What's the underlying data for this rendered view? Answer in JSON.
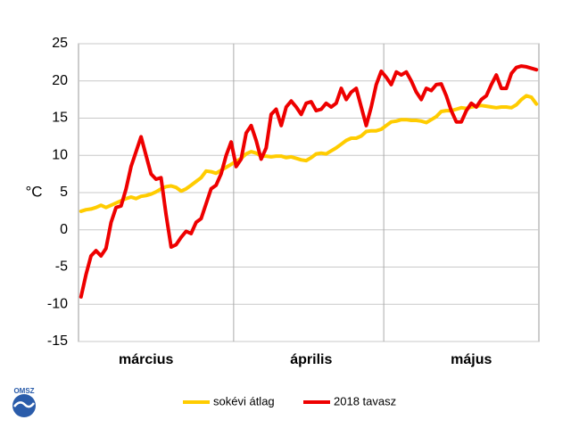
{
  "chart_data": {
    "type": "line",
    "y_label": "°C",
    "logo_text": "OMSZ",
    "categories": [
      null,
      null,
      null,
      null,
      null,
      null,
      null,
      null,
      null,
      null,
      null,
      null,
      null,
      "március",
      null,
      null,
      null,
      null,
      null,
      null,
      null,
      null,
      null,
      null,
      null,
      null,
      null,
      null,
      null,
      null,
      null,
      null,
      null,
      null,
      null,
      null,
      null,
      null,
      null,
      null,
      null,
      null,
      null,
      null,
      null,
      null,
      "április",
      null,
      null,
      null,
      null,
      null,
      null,
      null,
      null,
      null,
      null,
      null,
      null,
      null,
      null,
      null,
      null,
      null,
      null,
      null,
      null,
      null,
      null,
      null,
      null,
      null,
      null,
      null,
      null,
      null,
      null,
      null,
      "május",
      null,
      null,
      null,
      null,
      null,
      null,
      null,
      null,
      null,
      null,
      null,
      null,
      null
    ],
    "series": [
      {
        "name": "sokévi átlag",
        "color": "#ffcc00",
        "values": [
          2.5,
          2.7,
          2.8,
          3,
          3.3,
          3,
          3.3,
          3.6,
          3.9,
          4.2,
          4.4,
          4.2,
          4.5,
          4.6,
          4.8,
          5.1,
          5.5,
          5.8,
          5.9,
          5.7,
          5.2,
          5.5,
          6,
          6.5,
          7,
          7.9,
          7.8,
          7.6,
          8,
          8.4,
          8.8,
          9.2,
          9.6,
          10.2,
          10.5,
          10.3,
          9.9,
          9.9,
          9.8,
          9.9,
          9.9,
          9.7,
          9.8,
          9.6,
          9.4,
          9.3,
          9.7,
          10.2,
          10.3,
          10.2,
          10.6,
          11,
          11.5,
          12,
          12.3,
          12.3,
          12.6,
          13.2,
          13.3,
          13.3,
          13.5,
          14,
          14.5,
          14.6,
          14.8,
          14.8,
          14.7,
          14.7,
          14.6,
          14.4,
          14.8,
          15.2,
          15.9,
          16,
          16,
          16.2,
          16.4,
          16.3,
          16.5,
          16.6,
          16.7,
          16.6,
          16.5,
          16.4,
          16.5,
          16.5,
          16.4,
          16.8,
          17.5,
          18,
          17.8,
          16.9
        ]
      },
      {
        "name": "2018 tavasz",
        "color": "#ee0000",
        "values": [
          -9,
          -6,
          -3.5,
          -2.8,
          -3.5,
          -2.5,
          1,
          3,
          3.2,
          5.5,
          8.5,
          10.5,
          12.5,
          10,
          7.5,
          6.8,
          7,
          2,
          -2.3,
          -2,
          -1,
          -0.2,
          -0.5,
          1,
          1.5,
          3.5,
          5.5,
          6,
          7.5,
          10,
          11.8,
          8.5,
          9.5,
          13,
          14,
          12,
          9.5,
          11,
          15.5,
          16.2,
          14,
          16.5,
          17.3,
          16.5,
          15.5,
          17,
          17.2,
          16,
          16.2,
          17,
          16.5,
          17,
          19,
          17.5,
          18.5,
          19,
          16.5,
          14,
          16.5,
          19.5,
          21.3,
          20.5,
          19.5,
          21.2,
          20.8,
          21.2,
          20,
          18.5,
          17.5,
          19,
          18.7,
          19.5,
          19.6,
          18,
          16,
          14.5,
          14.5,
          16,
          17,
          16.5,
          17.5,
          18,
          19.5,
          20.8,
          19,
          19,
          21,
          21.8,
          22,
          21.9,
          21.7,
          21.5
        ]
      }
    ],
    "ylim": [
      -15,
      25
    ],
    "yticks": [
      -15,
      -10,
      -5,
      0,
      5,
      10,
      15,
      20,
      25
    ],
    "grid": true,
    "legend": "bottom"
  }
}
